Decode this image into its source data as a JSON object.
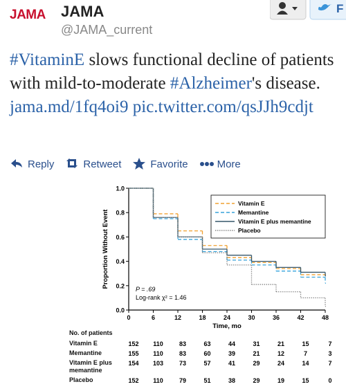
{
  "tweet": {
    "brand": "JAMA",
    "name": "JAMA",
    "handle": "@JAMA_current",
    "follow_label": "F",
    "segments": [
      {
        "text": "#VitaminE",
        "link": true
      },
      {
        "text": " slows functional decline of patients with mild-to-moderate ",
        "link": false
      },
      {
        "text": "#Alzheimer",
        "link": true
      },
      {
        "text": "'s disease. ",
        "link": false
      },
      {
        "text": "jama.md/1fq4oi9",
        "link": true
      },
      {
        "text": " ",
        "link": false
      },
      {
        "text": "pic.twitter.com/qsJJh9cdjt",
        "link": true
      }
    ],
    "actions": [
      "Reply",
      "Retweet",
      "Favorite",
      "More"
    ]
  },
  "chart_data": {
    "type": "step",
    "ylabel": "Proportion Without Event",
    "xlabel": "Time, mo",
    "x": [
      0,
      6,
      12,
      18,
      24,
      30,
      36,
      42,
      48
    ],
    "xlim": [
      0,
      48
    ],
    "ylim": [
      0,
      1
    ],
    "xticks": [
      0,
      6,
      12,
      18,
      24,
      30,
      36,
      42,
      48
    ],
    "yticks": [
      {
        "value": 0,
        "label": "0.0"
      },
      0.2,
      0.4,
      0.6,
      0.8,
      {
        "value": 1,
        "label": "1.0"
      }
    ],
    "annotations": [
      "P = .69",
      "Log-rank χ² = 1.46"
    ],
    "risk_title": "No. of patients",
    "series": [
      {
        "name": "Vitamin E",
        "color": "#f0a030",
        "style": "dashed",
        "values": [
          1.0,
          0.79,
          0.65,
          0.53,
          0.43,
          0.39,
          0.34,
          0.29,
          0.29
        ],
        "at_risk": [
          152,
          110,
          83,
          63,
          44,
          31,
          21,
          15,
          7
        ]
      },
      {
        "name": "Memantine",
        "color": "#36a2da",
        "style": "dashed",
        "values": [
          1.0,
          0.75,
          0.58,
          0.48,
          0.41,
          0.37,
          0.32,
          0.27,
          0.22
        ],
        "at_risk": [
          155,
          110,
          83,
          60,
          39,
          21,
          12,
          7,
          3
        ]
      },
      {
        "name": "Vitamin E plus memantine",
        "color": "#35566a",
        "style": "solid",
        "values": [
          1.0,
          0.76,
          0.6,
          0.5,
          0.45,
          0.4,
          0.35,
          0.31,
          0.28
        ],
        "at_risk": [
          154,
          103,
          73,
          57,
          41,
          29,
          24,
          14,
          7
        ]
      },
      {
        "name": "Placebo",
        "color": "#8a8a8a",
        "style": "dotted",
        "values": [
          1.0,
          0.76,
          0.6,
          0.47,
          0.37,
          0.21,
          0.15,
          0.1,
          0.03
        ],
        "at_risk": [
          152,
          110,
          79,
          51,
          38,
          29,
          19,
          15,
          0
        ]
      }
    ]
  }
}
